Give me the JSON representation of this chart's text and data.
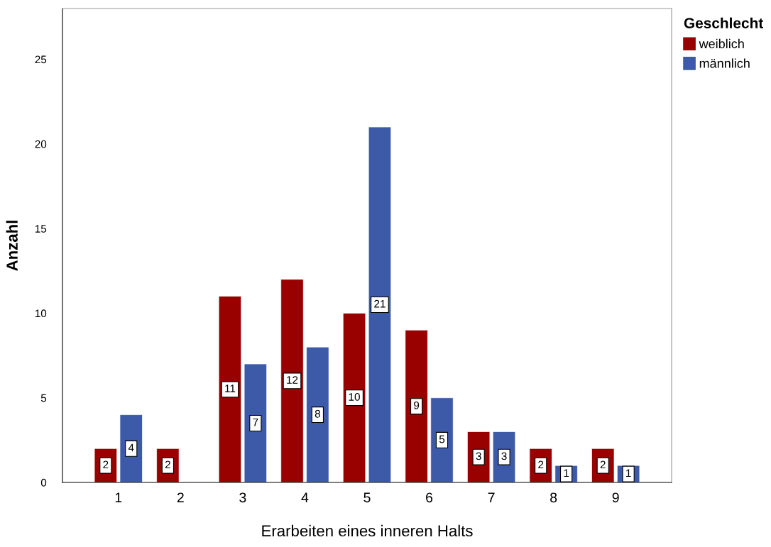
{
  "chart_data": {
    "type": "bar",
    "xlabel": "Erarbeiten eines inneren Halts",
    "ylabel": "Anzahl",
    "legend_title": "Geschlecht",
    "categories": [
      "1",
      "2",
      "3",
      "4",
      "5",
      "6",
      "7",
      "8",
      "9"
    ],
    "series": [
      {
        "name": "weiblich",
        "color": "#990000",
        "values": [
          2,
          2,
          11,
          12,
          10,
          9,
          3,
          2,
          2
        ]
      },
      {
        "name": "männlich",
        "color": "#3d5aa8",
        "values": [
          4,
          null,
          7,
          8,
          21,
          5,
          3,
          1,
          1
        ]
      }
    ],
    "ylim": [
      0,
      28
    ],
    "yticks": [
      0,
      5,
      10,
      15,
      20,
      25
    ],
    "grid": false,
    "legend": "top right",
    "data_labels": true
  }
}
